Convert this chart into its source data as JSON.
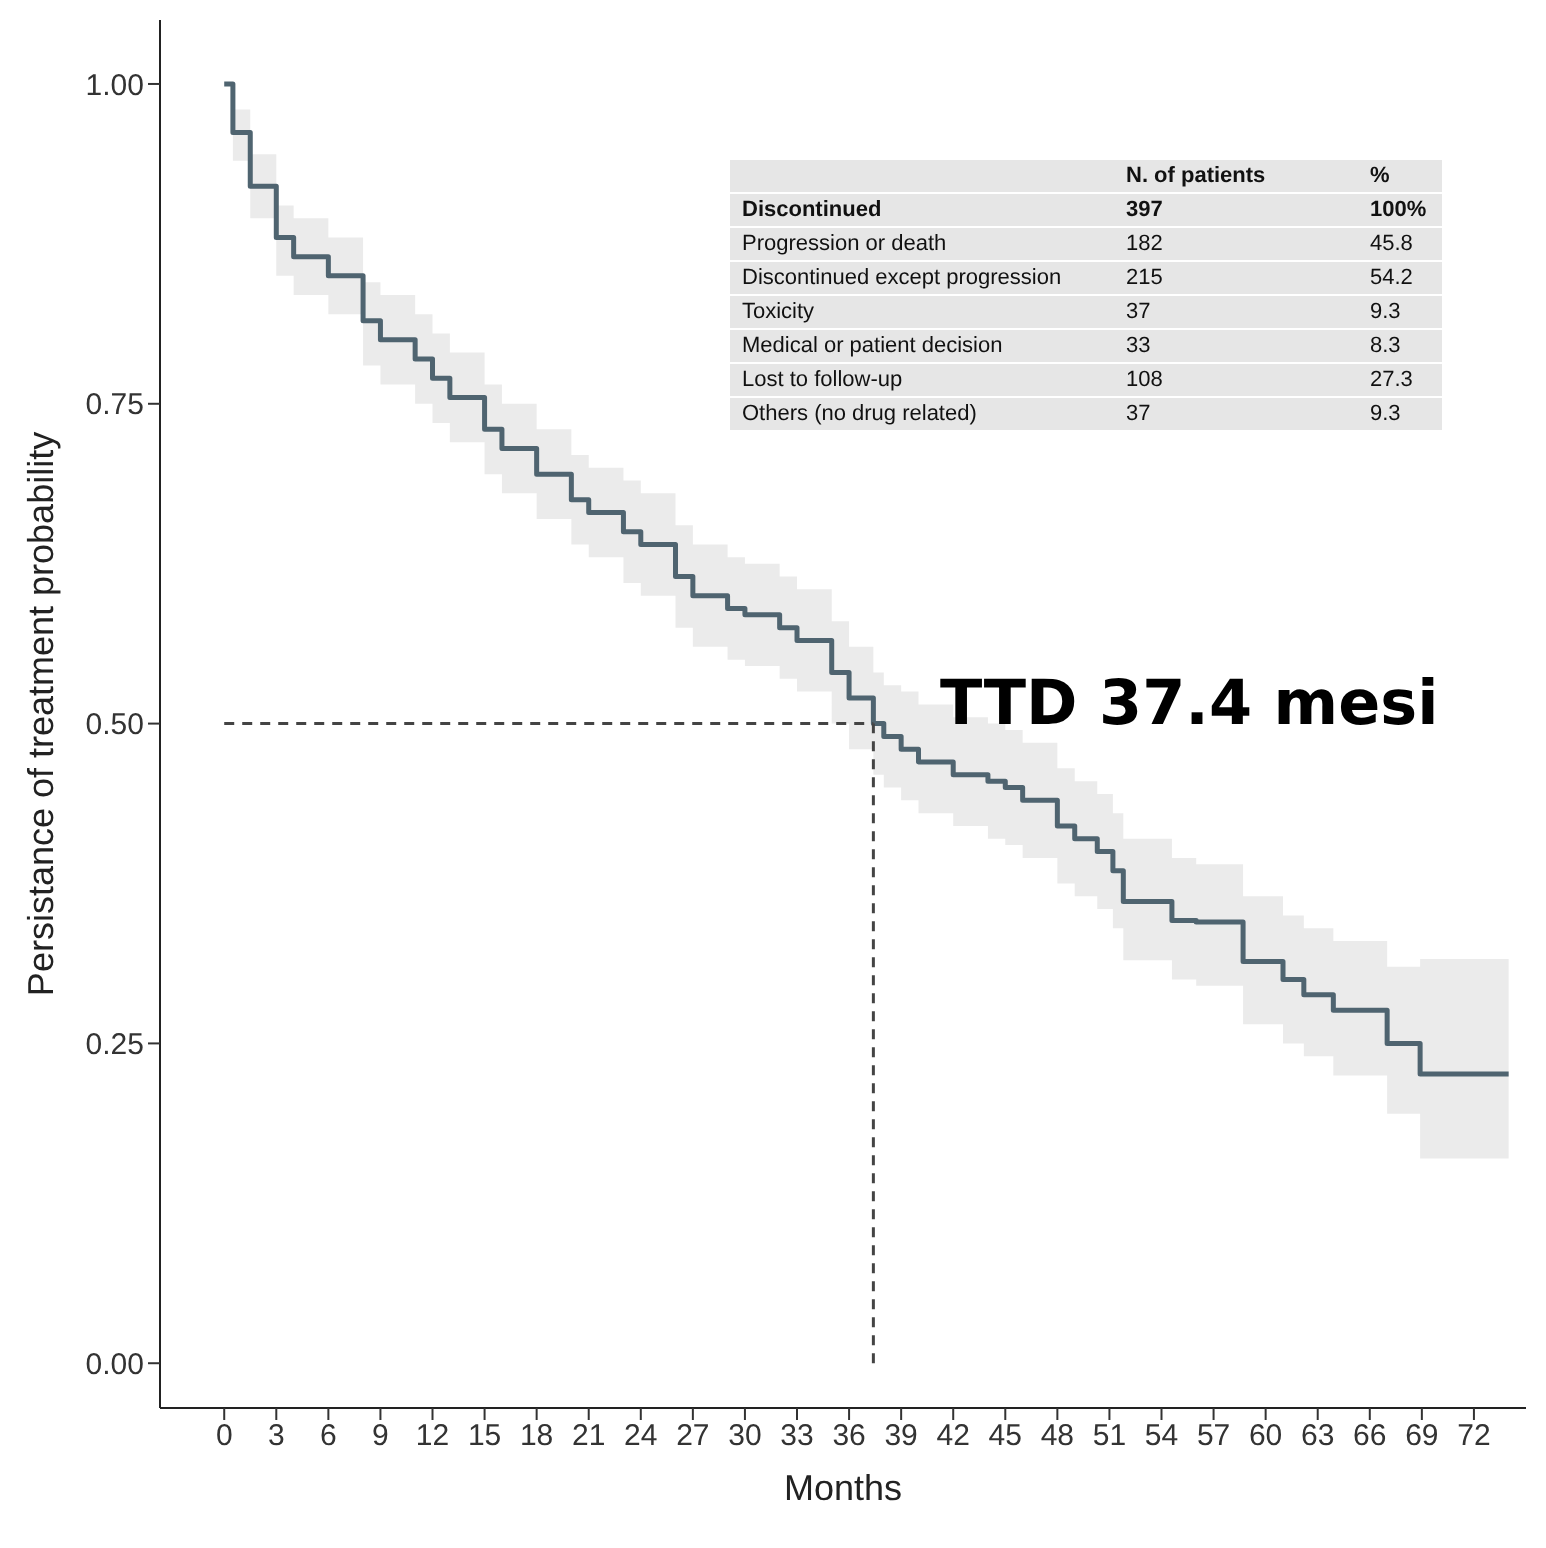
{
  "chart_data": {
    "type": "step",
    "xlabel": "Months",
    "ylabel": "Persistance of treatment probability",
    "xlim": [
      -3.7,
      75
    ],
    "xticks": [
      0,
      3,
      6,
      9,
      12,
      15,
      18,
      21,
      24,
      27,
      30,
      33,
      36,
      39,
      42,
      45,
      48,
      51,
      54,
      57,
      60,
      63,
      66,
      69,
      72
    ],
    "ylim": [
      -0.035,
      1.05
    ],
    "yticks": [
      {
        "value": 0,
        "label": "0.00"
      },
      {
        "value": 0.25,
        "label": "0.25"
      },
      {
        "value": 0.5,
        "label": "0.50"
      },
      {
        "value": 0.75,
        "label": "0.75"
      },
      {
        "value": 1,
        "label": "1.00"
      }
    ],
    "legend": false,
    "marker": "none",
    "line_style": "solid",
    "series": [
      {
        "color": "#4f6470",
        "x": [
          0,
          0.5,
          1.5,
          3,
          4,
          6,
          8,
          9,
          11,
          12,
          13,
          15,
          16,
          18,
          20,
          21,
          23,
          24,
          26,
          27,
          29,
          30,
          32,
          33,
          35,
          36,
          37.4,
          38,
          39,
          40,
          42,
          44,
          45,
          46,
          48,
          49,
          50.3,
          51.2,
          51.8,
          54.6,
          56,
          58.7,
          61,
          62.2,
          63.9,
          67,
          68.9,
          74
        ],
        "values": [
          1.0,
          0.962,
          0.92,
          0.88,
          0.865,
          0.85,
          0.815,
          0.8,
          0.785,
          0.77,
          0.755,
          0.73,
          0.715,
          0.695,
          0.675,
          0.665,
          0.65,
          0.64,
          0.615,
          0.6,
          0.59,
          0.585,
          0.575,
          0.565,
          0.54,
          0.52,
          0.5,
          0.49,
          0.48,
          0.47,
          0.46,
          0.455,
          0.45,
          0.44,
          0.42,
          0.41,
          0.4,
          0.385,
          0.361,
          0.346,
          0.345,
          0.314,
          0.3,
          0.288,
          0.276,
          0.25,
          0.226,
          0.226
        ],
        "lower": [
          1.0,
          0.94,
          0.895,
          0.85,
          0.835,
          0.82,
          0.78,
          0.765,
          0.75,
          0.735,
          0.72,
          0.695,
          0.68,
          0.66,
          0.64,
          0.63,
          0.61,
          0.6,
          0.575,
          0.56,
          0.55,
          0.545,
          0.535,
          0.525,
          0.5,
          0.48,
          0.46,
          0.45,
          0.44,
          0.43,
          0.42,
          0.41,
          0.405,
          0.395,
          0.375,
          0.365,
          0.355,
          0.34,
          0.315,
          0.3,
          0.295,
          0.265,
          0.25,
          0.24,
          0.225,
          0.195,
          0.16,
          0.16
        ],
        "upper": [
          1.0,
          0.98,
          0.945,
          0.905,
          0.895,
          0.88,
          0.845,
          0.835,
          0.82,
          0.805,
          0.79,
          0.765,
          0.75,
          0.73,
          0.71,
          0.7,
          0.69,
          0.68,
          0.655,
          0.64,
          0.63,
          0.625,
          0.615,
          0.605,
          0.58,
          0.56,
          0.54,
          0.53,
          0.525,
          0.515,
          0.505,
          0.5,
          0.495,
          0.485,
          0.465,
          0.455,
          0.445,
          0.43,
          0.41,
          0.395,
          0.39,
          0.365,
          0.35,
          0.34,
          0.33,
          0.31,
          0.316,
          0.316
        ]
      }
    ],
    "ref_lines": [
      {
        "axis": "y",
        "value": 0.5,
        "color": "#444444",
        "line_style": "dashed"
      },
      {
        "axis": "x",
        "value": 37.4,
        "color": "#444444",
        "line_style": "dashed"
      }
    ],
    "annotations": [
      "TTD 37.4 mesi",
      "N. of patients",
      "%",
      "Discontinued",
      "397",
      "100%",
      "Progression or death",
      "182",
      "45.8",
      "Discontinued except progression",
      "215",
      "54.2",
      "Toxicity",
      "37",
      "9.3",
      "Medical or patient decision",
      "33",
      "8.3",
      "Lost to follow-up",
      "108",
      "27.3",
      "Others (no drug related)",
      "37",
      "9.3"
    ]
  }
}
